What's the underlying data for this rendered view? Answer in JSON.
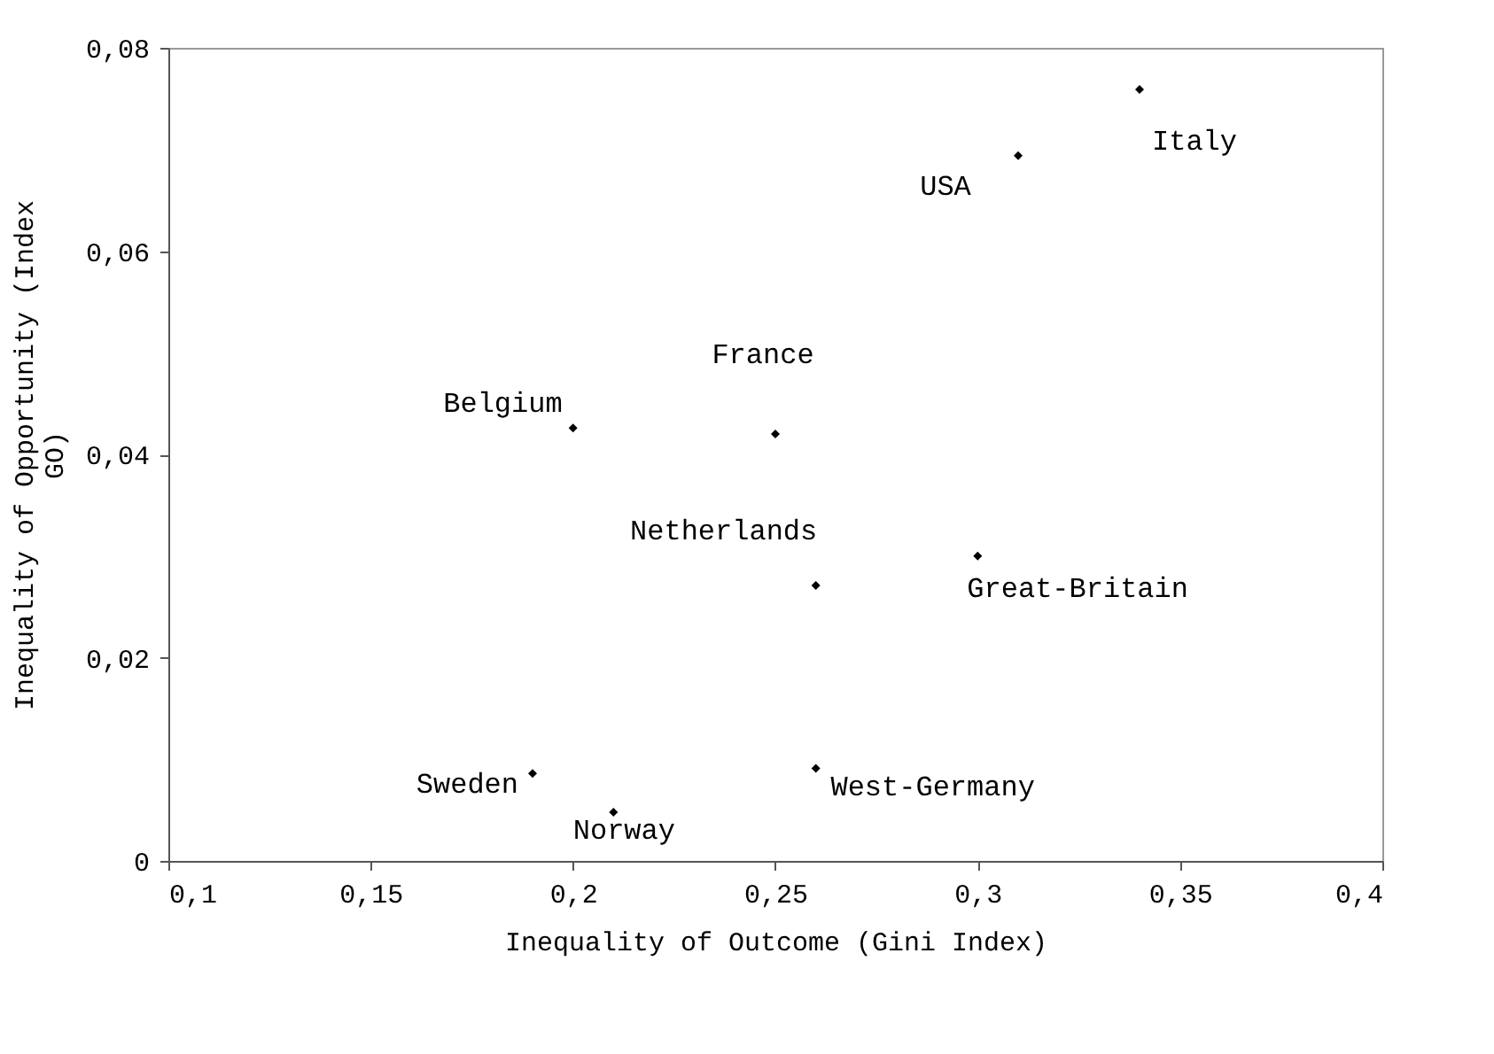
{
  "chart_data": {
    "type": "scatter",
    "xlabel": "Inequality of Outcome (Gini Index)",
    "ylabel": "Inequality of Opportunity (Index GO)",
    "x": [
      0.2,
      0.25,
      0.34,
      0.31,
      0.26,
      0.3,
      0.19,
      0.21,
      0.26
    ],
    "series": [
      {
        "color": "#000000",
        "values": [
          0.0426,
          0.042,
          0.0759,
          0.0694,
          0.0271,
          0.03,
          0.0086,
          0.0048,
          0.0091
        ]
      }
    ],
    "annotations": [
      {
        "text": "Belgium",
        "x": 0.2,
        "y": 0.0426
      },
      {
        "text": "France",
        "x": 0.25,
        "y": 0.042
      },
      {
        "text": "Italy",
        "x": 0.34,
        "y": 0.0759
      },
      {
        "text": "USA",
        "x": 0.31,
        "y": 0.0694
      },
      {
        "text": "Netherlands",
        "x": 0.26,
        "y": 0.0271
      },
      {
        "text": "Great-Britain",
        "x": 0.3,
        "y": 0.03
      },
      {
        "text": "Sweden",
        "x": 0.19,
        "y": 0.0086
      },
      {
        "text": "Norway",
        "x": 0.21,
        "y": 0.0048
      },
      {
        "text": "West-Germany",
        "x": 0.26,
        "y": 0.0091
      }
    ],
    "xlim": [
      0.1,
      0.4
    ],
    "xticks": [
      {
        "value": 0.1,
        "label": "0,1"
      },
      {
        "value": 0.15,
        "label": "0,15"
      },
      {
        "value": 0.2,
        "label": "0,2"
      },
      {
        "value": 0.25,
        "label": "0,25"
      },
      {
        "value": 0.3,
        "label": "0,3"
      },
      {
        "value": 0.35,
        "label": "0,35"
      },
      {
        "value": 0.4,
        "label": "0,4"
      }
    ],
    "ylim": [
      0,
      0.08
    ],
    "yticks": [
      0,
      {
        "value": 0.02,
        "label": "0,02"
      },
      {
        "value": 0.04,
        "label": "0,04"
      },
      {
        "value": 0.06,
        "label": "0,06"
      },
      {
        "value": 0.08,
        "label": "0,08"
      }
    ],
    "marker": "diamond",
    "grid": false
  }
}
